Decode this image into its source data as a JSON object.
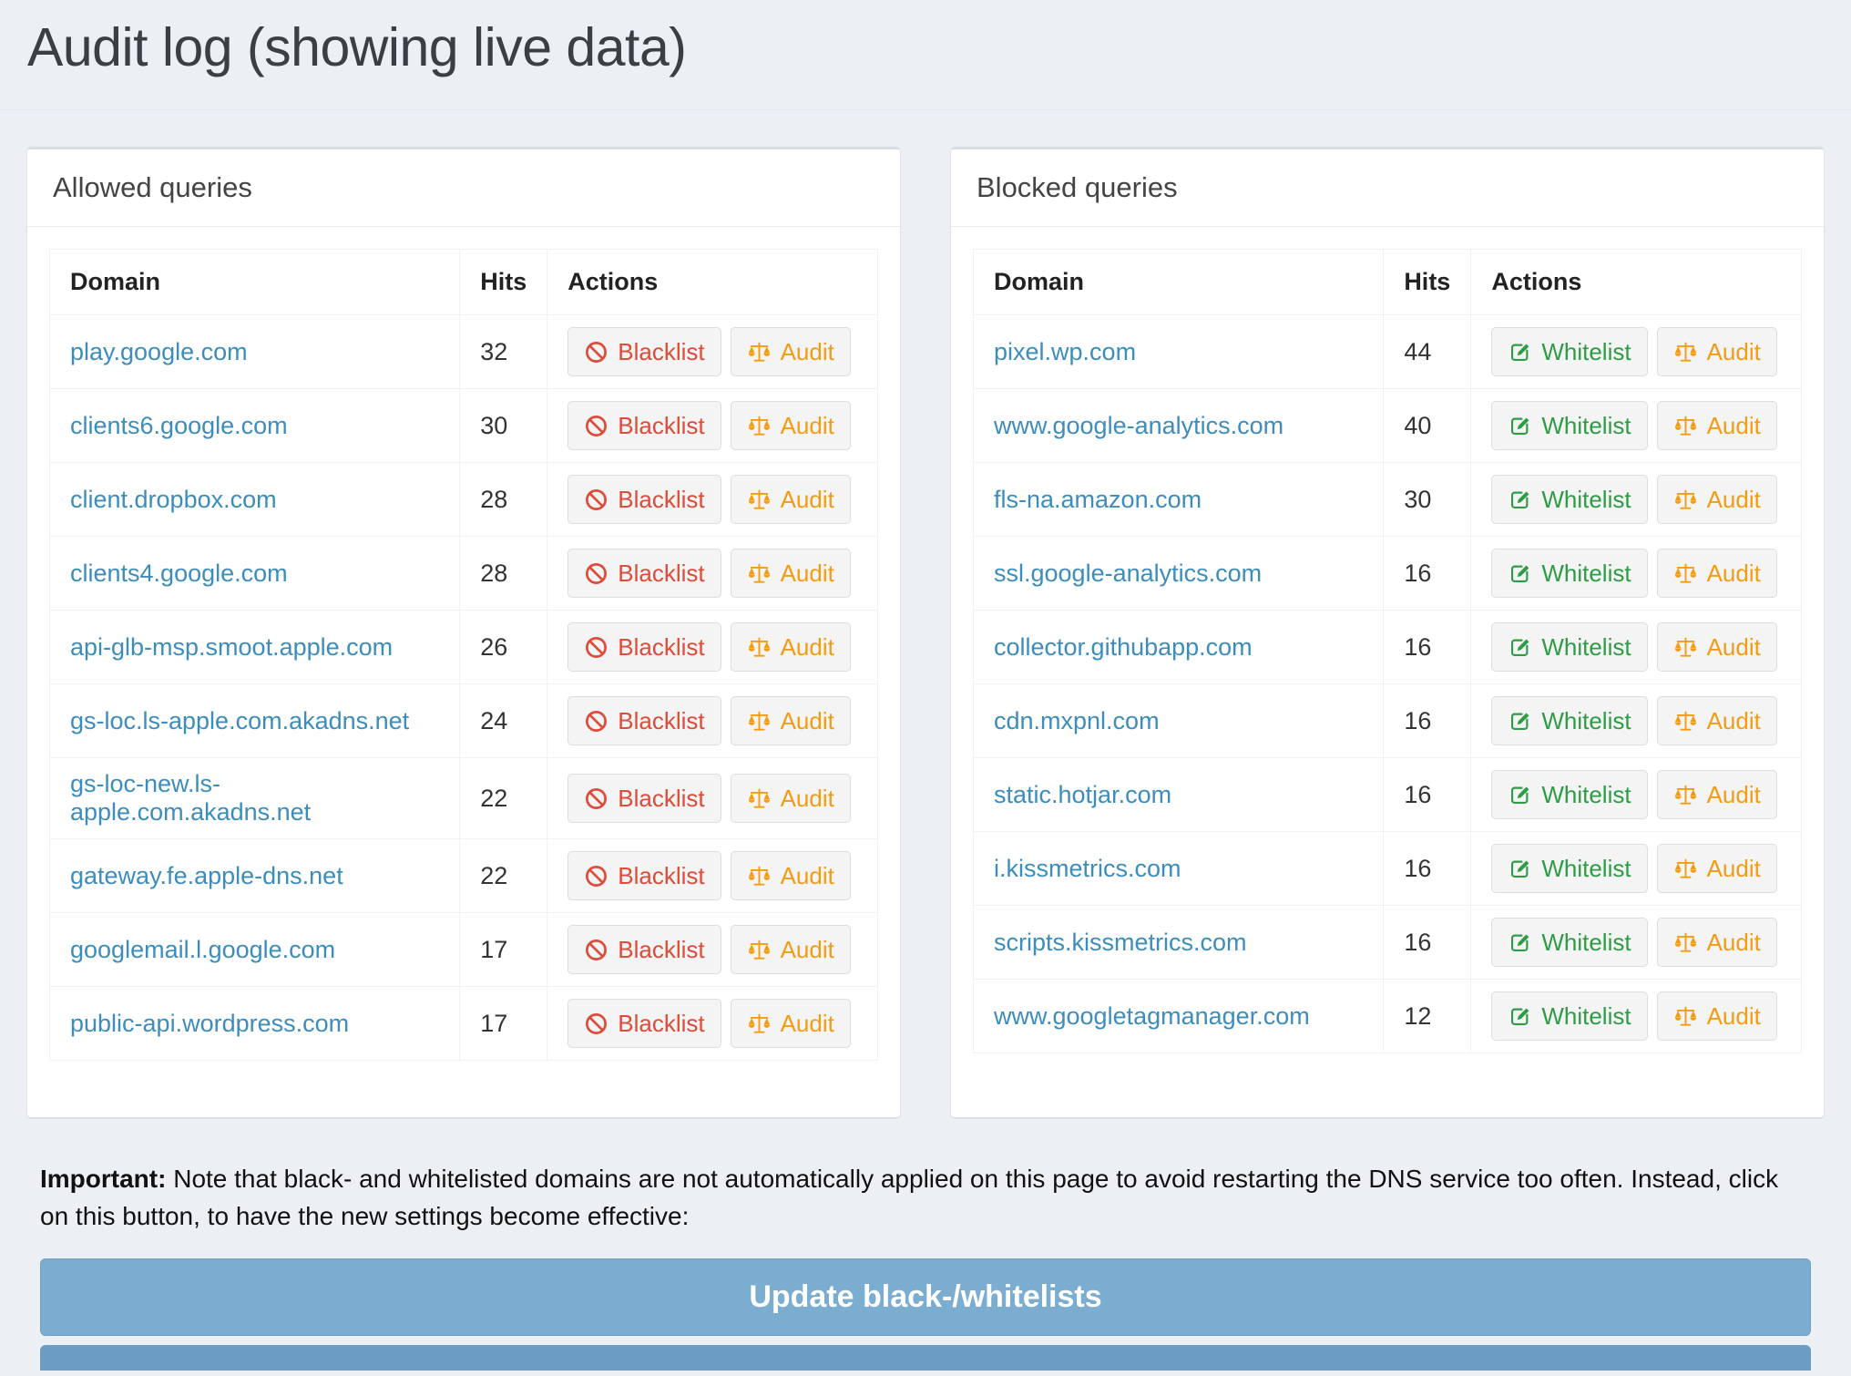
{
  "page": {
    "title": "Audit log (showing live data)",
    "note": {
      "bold": "Important:",
      "text": " Note that black- and whitelisted domains are not automatically applied on this page to avoid restarting the DNS service too often. Instead, click on this button, to have the new settings become effective:"
    },
    "update_button": "Update black-/whitelists"
  },
  "colors": {
    "background": "#ecf0f5",
    "panel_background": "#ffffff",
    "link_blue": "#3c8dbc",
    "blacklist_red": "#dd4b39",
    "whitelist_green": "#2e9b45",
    "audit_orange": "#f39c12",
    "update_button_blue": "#7badd1"
  },
  "allowed": {
    "title": "Allowed queries",
    "columns": [
      "Domain",
      "Hits",
      "Actions"
    ],
    "actions": [
      {
        "label": "Blacklist",
        "icon": "ban-icon",
        "name": "blacklist-button",
        "color_class": "act-red"
      },
      {
        "label": "Audit",
        "icon": "scales-icon",
        "name": "audit-button",
        "color_class": "act-orange"
      }
    ],
    "rows": [
      {
        "domain": "play.google.com",
        "hits": "32"
      },
      {
        "domain": "clients6.google.com",
        "hits": "30"
      },
      {
        "domain": "client.dropbox.com",
        "hits": "28"
      },
      {
        "domain": "clients4.google.com",
        "hits": "28"
      },
      {
        "domain": "api-glb-msp.smoot.apple.com",
        "hits": "26"
      },
      {
        "domain": "gs-loc.ls-apple.com.akadns.net",
        "hits": "24"
      },
      {
        "domain": "gs-loc-new.ls-apple.com.akadns.net",
        "hits": "22"
      },
      {
        "domain": "gateway.fe.apple-dns.net",
        "hits": "22"
      },
      {
        "domain": "googlemail.l.google.com",
        "hits": "17"
      },
      {
        "domain": "public-api.wordpress.com",
        "hits": "17"
      }
    ]
  },
  "blocked": {
    "title": "Blocked queries",
    "columns": [
      "Domain",
      "Hits",
      "Actions"
    ],
    "actions": [
      {
        "label": "Whitelist",
        "icon": "edit-icon",
        "name": "whitelist-button",
        "color_class": "act-green"
      },
      {
        "label": "Audit",
        "icon": "scales-icon",
        "name": "audit-button",
        "color_class": "act-orange"
      }
    ],
    "rows": [
      {
        "domain": "pixel.wp.com",
        "hits": "44"
      },
      {
        "domain": "www.google-analytics.com",
        "hits": "40"
      },
      {
        "domain": "fls-na.amazon.com",
        "hits": "30"
      },
      {
        "domain": "ssl.google-analytics.com",
        "hits": "16"
      },
      {
        "domain": "collector.githubapp.com",
        "hits": "16"
      },
      {
        "domain": "cdn.mxpnl.com",
        "hits": "16"
      },
      {
        "domain": "static.hotjar.com",
        "hits": "16"
      },
      {
        "domain": "i.kissmetrics.com",
        "hits": "16"
      },
      {
        "domain": "scripts.kissmetrics.com",
        "hits": "16"
      },
      {
        "domain": "www.googletagmanager.com",
        "hits": "12"
      }
    ]
  }
}
